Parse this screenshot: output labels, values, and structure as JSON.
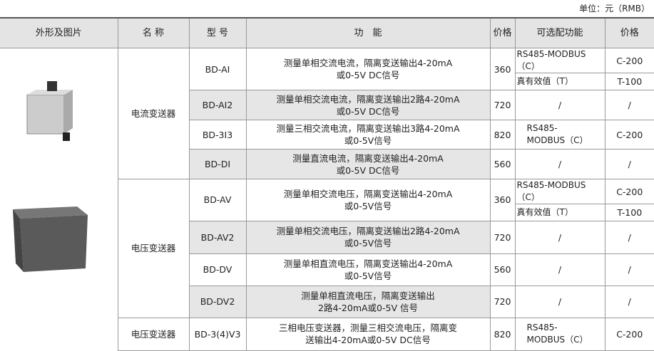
{
  "unit_label": "单位：元（RMB）",
  "headers": [
    "外形及图片",
    "名 称",
    "型 号",
    "功　能",
    "价格",
    "可选配功能",
    "价格"
  ],
  "images": [
    {
      "icon": "current-transmitter-device"
    },
    {
      "icon": "voltage-transmitter-device"
    }
  ],
  "groups": [
    {
      "name": "电流变送器",
      "rows": [
        {
          "model": "BD-AI",
          "func1": "测量单相交流电流，隔离变送输出4-20mA",
          "func2": "或0-5V DC信号",
          "price": "360",
          "options": [
            {
              "name": "RS485-MODBUS（C）",
              "price": "C-200"
            },
            {
              "name": "真有效值（T）",
              "price": "T-100"
            }
          ]
        },
        {
          "model": "BD-AI2",
          "func1": "测量单相交流电流，隔离变送输出2路4-20mA",
          "func2": "或0-5V DC信号",
          "price": "720",
          "options": [
            {
              "name": "/",
              "price": "/"
            }
          ]
        },
        {
          "model": "BD-3I3",
          "func1": "测量三相交流电流，隔离变送输出3路4-20mA",
          "func2": "或0-5V信号",
          "price": "820",
          "options": [
            {
              "name": "RS485-\nMODBUS（C）",
              "price": "C-200"
            }
          ]
        },
        {
          "model": "BD-DI",
          "func1": "测量直流电流，隔离变送输出4-20mA",
          "func2": "或0-5V DC信号",
          "price": "560",
          "options": [
            {
              "name": "/",
              "price": "/"
            }
          ]
        }
      ]
    },
    {
      "name": "电压变送器",
      "rows": [
        {
          "model": "BD-AV",
          "func1": "测量单相交流电压，隔离变送输出4-20mA",
          "func2": "或0-5V信号",
          "price": "360",
          "options": [
            {
              "name": "RS485-MODBUS（C）",
              "price": "C-200"
            },
            {
              "name": "真有效值（T）",
              "price": "T-100"
            }
          ]
        },
        {
          "model": "BD-AV2",
          "func1": "测量单相交流电压，隔离变送输出2路4-20mA",
          "func2": "或0-5V信号",
          "price": "720",
          "options": [
            {
              "name": "/",
              "price": "/"
            }
          ]
        },
        {
          "model": "BD-DV",
          "func1": "测量单相直流电压，隔离变送输出4-20mA",
          "func2": "或0-5V信号",
          "price": "560",
          "options": [
            {
              "name": "/",
              "price": "/"
            }
          ]
        },
        {
          "model": "BD-DV2",
          "func1": "测量单相直流电压，隔离变送输出",
          "func2": "2路4-20mA或0-5V 信号",
          "price": "720",
          "options": [
            {
              "name": "/",
              "price": "/"
            }
          ]
        }
      ]
    },
    {
      "name": "电压变送器",
      "rows": [
        {
          "model": "BD-3(4)V3",
          "func1": "三相电压变送器，测量三相交流电压，隔离变",
          "func2": "送输出4-20mA或0-5V DC信号",
          "price": "820",
          "options": [
            {
              "name": "RS485-\nMODBUS（C）",
              "price": "C-200"
            }
          ]
        }
      ]
    }
  ]
}
